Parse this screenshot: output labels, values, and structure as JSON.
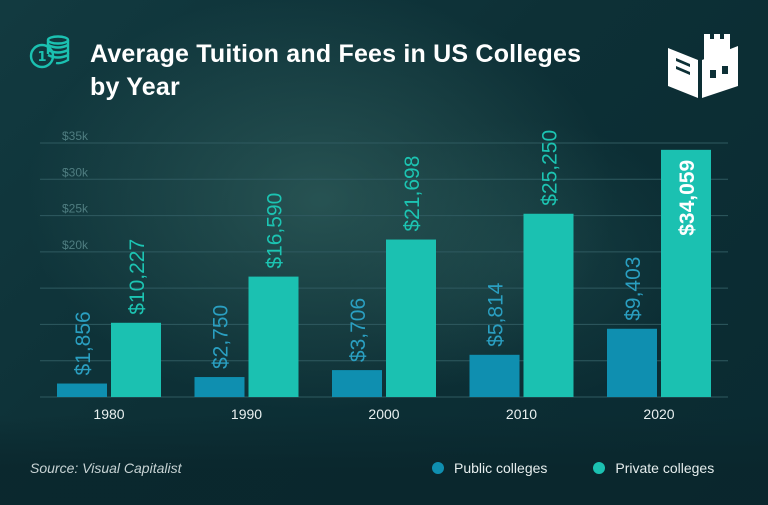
{
  "header": {
    "title_line1": "Average Tuition and Fees in US Colleges",
    "title_line2": "by Year",
    "coins_icon": "coins-icon",
    "logo_icon": "book-castle-logo-icon"
  },
  "footer": {
    "source": "Source: Visual Capitalist"
  },
  "colors": {
    "public": "#0f8fb0",
    "private": "#1bc1b1",
    "public_label": "#2a9fc1",
    "private_label": "#1cc4b2",
    "grid": "#2f5a60",
    "tick": "#4f7d80",
    "axis_label": "#e9f0f0"
  },
  "chart_data": {
    "type": "bar",
    "title": "Average Tuition and Fees in US Colleges by Year",
    "categories": [
      "1980",
      "1990",
      "2000",
      "2010",
      "2020"
    ],
    "series": [
      {
        "name": "Public colleges",
        "values": [
          1856,
          2750,
          3706,
          5814,
          9403
        ],
        "labels": [
          "$1,856",
          "$2,750",
          "$3,706",
          "$5,814",
          "$9,403"
        ]
      },
      {
        "name": "Private colleges",
        "values": [
          10227,
          16590,
          21698,
          25250,
          34059
        ],
        "labels": [
          "$10,227",
          "$16,590",
          "$21,698",
          "$25,250",
          "$34,059"
        ]
      }
    ],
    "ylim": [
      0,
      35000
    ],
    "yticks": [
      {
        "value": 20000,
        "label": "$20k"
      },
      {
        "value": 25000,
        "label": "$25k"
      },
      {
        "value": 30000,
        "label": "$30k"
      },
      {
        "value": 35000,
        "label": "$35k"
      }
    ],
    "grid_values": [
      5000,
      10000,
      15000
    ],
    "grid": true,
    "legend_position": "bottom-right",
    "xlabel": "",
    "ylabel": ""
  }
}
